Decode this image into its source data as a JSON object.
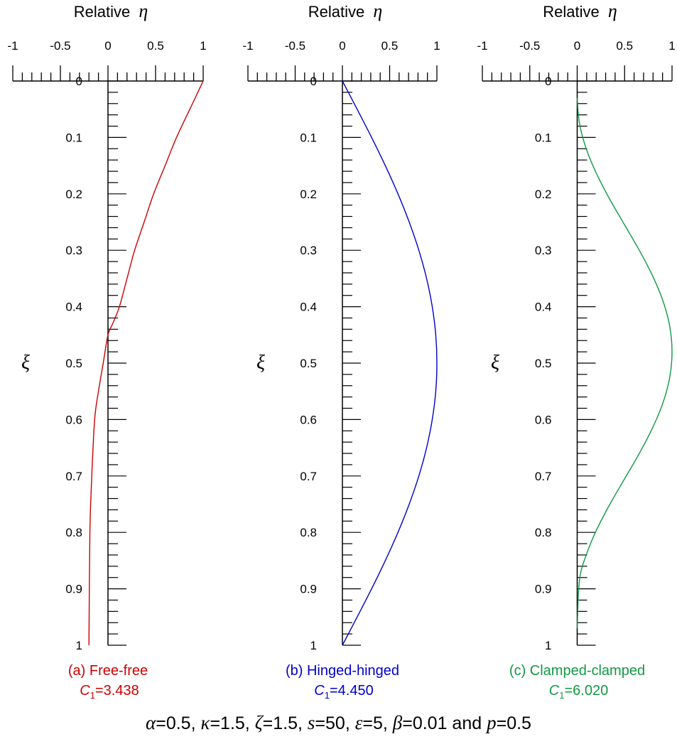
{
  "chart_data": [
    {
      "type": "line",
      "panel": "a",
      "color": "#cc0000",
      "title": "Relative η",
      "title_text": "Relative",
      "title_symbol": "η",
      "ylabel": "ξ",
      "xlim": [
        -1,
        1
      ],
      "ylim": [
        0,
        1
      ],
      "y_inverted": true,
      "x_ticks": [
        "-1",
        "-0.5",
        "0",
        "0.5",
        "1"
      ],
      "y_ticks": [
        "0",
        "0.1",
        "0.2",
        "0.3",
        "0.4",
        "0.5",
        "0.6",
        "0.7",
        "0.8",
        "0.9",
        "1"
      ],
      "caption": "(a) Free-free",
      "c_label": "C",
      "c_sub": "1",
      "c_value": "=3.438",
      "series": [
        {
          "x": [
            1.0,
            0.86,
            0.72,
            0.6,
            0.48,
            0.38,
            0.28,
            0.2,
            0.12,
            0.05,
            0.0,
            -0.05,
            -0.1,
            -0.14,
            -0.17,
            -0.19,
            -0.2
          ],
          "y": [
            0.0,
            0.05,
            0.1,
            0.15,
            0.2,
            0.25,
            0.3,
            0.35,
            0.4,
            0.43,
            0.45,
            0.5,
            0.55,
            0.6,
            0.7,
            0.8,
            1.0
          ]
        }
      ]
    },
    {
      "type": "line",
      "panel": "b",
      "color": "#0000cc",
      "title": "Relative η",
      "title_text": "Relative",
      "title_symbol": "η",
      "ylabel": "ξ",
      "xlim": [
        -1,
        1
      ],
      "ylim": [
        0,
        1
      ],
      "y_inverted": true,
      "x_ticks": [
        "-1",
        "-0.5",
        "0",
        "0.5",
        "1"
      ],
      "y_ticks": [
        "0",
        "0.1",
        "0.2",
        "0.3",
        "0.4",
        "0.5",
        "0.6",
        "0.7",
        "0.8",
        "0.9",
        "1"
      ],
      "caption": "(b) Hinged-hinged",
      "c_label": "C",
      "c_sub": "1",
      "c_value": "=4.450",
      "series": [
        {
          "x": [
            0.0,
            0.156,
            0.309,
            0.454,
            0.588,
            0.707,
            0.809,
            0.891,
            0.951,
            0.988,
            1.0,
            0.988,
            0.951,
            0.891,
            0.809,
            0.707,
            0.588,
            0.454,
            0.309,
            0.156,
            0.0
          ],
          "y": [
            0.0,
            0.05,
            0.1,
            0.15,
            0.2,
            0.25,
            0.3,
            0.35,
            0.4,
            0.45,
            0.5,
            0.55,
            0.6,
            0.65,
            0.7,
            0.75,
            0.8,
            0.85,
            0.9,
            0.95,
            1.0
          ]
        }
      ]
    },
    {
      "type": "line",
      "panel": "c",
      "color": "#119944",
      "title": "Relative η",
      "title_text": "Relative",
      "title_symbol": "η",
      "ylabel": "ξ",
      "xlim": [
        -1,
        1
      ],
      "ylim": [
        0,
        1
      ],
      "y_inverted": true,
      "x_ticks": [
        "-1",
        "-0.5",
        "0",
        "0.5",
        "1"
      ],
      "y_ticks": [
        "0",
        "0.1",
        "0.2",
        "0.3",
        "0.4",
        "0.5",
        "0.6",
        "0.7",
        "0.8",
        "0.9",
        "1"
      ],
      "caption": "(c) Clamped-clamped",
      "c_label": "C",
      "c_sub": "1",
      "c_value": "=6.020",
      "series": [
        {
          "x": [
            0.0,
            0.024,
            0.095,
            0.206,
            0.345,
            0.5,
            0.655,
            0.794,
            0.905,
            0.976,
            1.0,
            0.976,
            0.905,
            0.794,
            0.655,
            0.5,
            0.345,
            0.206,
            0.095,
            0.024,
            0.0
          ],
          "y": [
            0.03,
            0.075,
            0.12,
            0.165,
            0.21,
            0.255,
            0.3,
            0.345,
            0.39,
            0.435,
            0.48,
            0.525,
            0.57,
            0.615,
            0.66,
            0.705,
            0.75,
            0.795,
            0.84,
            0.885,
            0.97
          ]
        }
      ]
    }
  ],
  "footer": {
    "alpha_sym": "α",
    "alpha_val": "=0.5, ",
    "kappa_sym": "κ",
    "kappa_val": "=1.5, ",
    "zeta_sym": "ζ",
    "zeta_val": "=1.5, ",
    "s_sym": "s",
    "s_val": "=50, ",
    "eps_sym": "ε",
    "eps_val": "=5, ",
    "beta_sym": "β",
    "beta_val": "=0.01 and ",
    "p_sym": "p",
    "p_val": "=0.5"
  }
}
